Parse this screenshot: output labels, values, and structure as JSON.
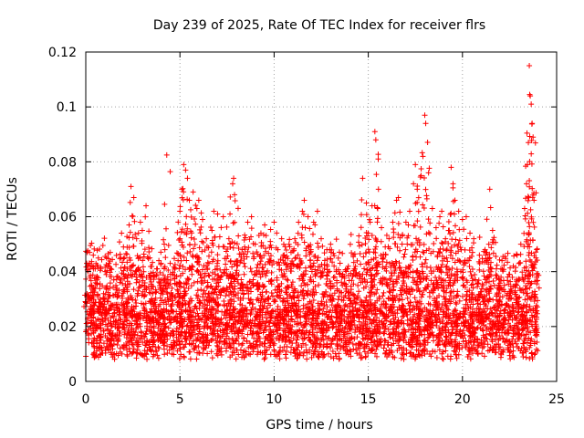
{
  "chart_data": {
    "type": "scatter",
    "title": "Day 239 of 2025, Rate Of TEC Index for receiver flrs",
    "xlabel": "GPS time / hours",
    "ylabel": "ROTI / TECUs",
    "xlim": [
      0,
      25
    ],
    "ylim": [
      0,
      0.12
    ],
    "xticks": [
      0,
      5,
      10,
      15,
      20,
      25
    ],
    "yticks": [
      0,
      0.02,
      0.04,
      0.06,
      0.08,
      0.1,
      0.12
    ],
    "xtick_labels": [
      "0",
      "5",
      "10",
      "15",
      "20",
      "25"
    ],
    "ytick_labels": [
      "0",
      "0.02",
      "0.04",
      "0.06",
      "0.08",
      "0.1",
      "0.12"
    ],
    "grid": true,
    "marker": "+",
    "color": "#ff0000",
    "series": [
      {
        "name": "ROTI",
        "points": [
          [
            0.05,
            0.043
          ],
          [
            0.12,
            0.031
          ],
          [
            0.2,
            0.047
          ],
          [
            0.3,
            0.035
          ],
          [
            0.4,
            0.046
          ],
          [
            0.5,
            0.041
          ],
          [
            0.8,
            0.028
          ],
          [
            1.1,
            0.045
          ],
          [
            1.3,
            0.047
          ],
          [
            1.6,
            0.035
          ],
          [
            1.9,
            0.054
          ],
          [
            2.0,
            0.049
          ],
          [
            2.3,
            0.057
          ],
          [
            2.4,
            0.071
          ],
          [
            2.55,
            0.067
          ],
          [
            2.7,
            0.052
          ],
          [
            2.9,
            0.058
          ],
          [
            3.0,
            0.055
          ],
          [
            3.2,
            0.064
          ],
          [
            3.4,
            0.045
          ],
          [
            3.6,
            0.038
          ],
          [
            3.8,
            0.041
          ],
          [
            4.0,
            0.043
          ],
          [
            4.2,
            0.048
          ],
          [
            4.3,
            0.0825
          ],
          [
            4.6,
            0.039
          ],
          [
            4.9,
            0.044
          ],
          [
            5.0,
            0.062
          ],
          [
            5.1,
            0.07
          ],
          [
            5.2,
            0.079
          ],
          [
            5.3,
            0.077
          ],
          [
            5.4,
            0.074
          ],
          [
            5.5,
            0.066
          ],
          [
            5.7,
            0.069
          ],
          [
            5.9,
            0.063
          ],
          [
            6.0,
            0.066
          ],
          [
            6.2,
            0.059
          ],
          [
            6.4,
            0.052
          ],
          [
            6.7,
            0.055
          ],
          [
            6.8,
            0.062
          ],
          [
            7.0,
            0.061
          ],
          [
            7.3,
            0.06
          ],
          [
            7.6,
            0.052
          ],
          [
            7.8,
            0.072
          ],
          [
            7.85,
            0.074
          ],
          [
            7.9,
            0.068
          ],
          [
            8.1,
            0.053
          ],
          [
            8.3,
            0.048
          ],
          [
            8.6,
            0.058
          ],
          [
            8.8,
            0.06
          ],
          [
            9.0,
            0.05
          ],
          [
            9.3,
            0.054
          ],
          [
            9.5,
            0.057
          ],
          [
            9.8,
            0.051
          ],
          [
            10.0,
            0.058
          ],
          [
            10.2,
            0.048
          ],
          [
            10.4,
            0.052
          ],
          [
            10.6,
            0.045
          ],
          [
            10.9,
            0.047
          ],
          [
            11.1,
            0.052
          ],
          [
            11.3,
            0.058
          ],
          [
            11.5,
            0.062
          ],
          [
            11.6,
            0.066
          ],
          [
            11.8,
            0.06
          ],
          [
            12.1,
            0.058
          ],
          [
            12.3,
            0.062
          ],
          [
            12.5,
            0.052
          ],
          [
            12.8,
            0.048
          ],
          [
            13.0,
            0.05
          ],
          [
            13.3,
            0.04
          ],
          [
            13.6,
            0.038
          ],
          [
            13.9,
            0.041
          ],
          [
            14.2,
            0.046
          ],
          [
            14.5,
            0.053
          ],
          [
            14.7,
            0.074
          ],
          [
            14.9,
            0.065
          ],
          [
            15.0,
            0.054
          ],
          [
            15.1,
            0.058
          ],
          [
            15.2,
            0.064
          ],
          [
            15.35,
            0.091
          ],
          [
            15.4,
            0.088
          ],
          [
            15.5,
            0.063
          ],
          [
            15.7,
            0.056
          ],
          [
            15.9,
            0.049
          ],
          [
            16.1,
            0.052
          ],
          [
            16.3,
            0.058
          ],
          [
            16.5,
            0.066
          ],
          [
            16.6,
            0.067
          ],
          [
            16.8,
            0.053
          ],
          [
            17.0,
            0.058
          ],
          [
            17.2,
            0.062
          ],
          [
            17.4,
            0.072
          ],
          [
            17.5,
            0.079
          ],
          [
            17.6,
            0.07
          ],
          [
            17.8,
            0.075
          ],
          [
            17.9,
            0.082
          ],
          [
            18.0,
            0.097
          ],
          [
            18.05,
            0.094
          ],
          [
            18.2,
            0.076
          ],
          [
            18.4,
            0.063
          ],
          [
            18.6,
            0.056
          ],
          [
            18.8,
            0.06
          ],
          [
            18.9,
            0.062
          ],
          [
            19.1,
            0.052
          ],
          [
            19.3,
            0.055
          ],
          [
            19.4,
            0.078
          ],
          [
            19.5,
            0.072
          ],
          [
            19.6,
            0.066
          ],
          [
            19.8,
            0.062
          ],
          [
            20.0,
            0.059
          ],
          [
            20.2,
            0.06
          ],
          [
            20.4,
            0.054
          ],
          [
            20.6,
            0.052
          ],
          [
            20.9,
            0.046
          ],
          [
            21.2,
            0.048
          ],
          [
            21.4,
            0.05
          ],
          [
            21.45,
            0.07
          ],
          [
            21.6,
            0.055
          ],
          [
            21.8,
            0.041
          ],
          [
            22.1,
            0.044
          ],
          [
            22.4,
            0.038
          ],
          [
            22.7,
            0.042
          ],
          [
            22.9,
            0.046
          ],
          [
            23.1,
            0.05
          ],
          [
            23.3,
            0.063
          ],
          [
            23.4,
            0.072
          ],
          [
            23.45,
            0.079
          ],
          [
            23.5,
            0.087
          ],
          [
            23.55,
            0.115
          ],
          [
            23.6,
            0.104
          ],
          [
            23.65,
            0.101
          ],
          [
            23.7,
            0.094
          ],
          [
            23.75,
            0.089
          ],
          [
            23.8,
            0.066
          ],
          [
            23.9,
            0.045
          ]
        ]
      }
    ]
  }
}
